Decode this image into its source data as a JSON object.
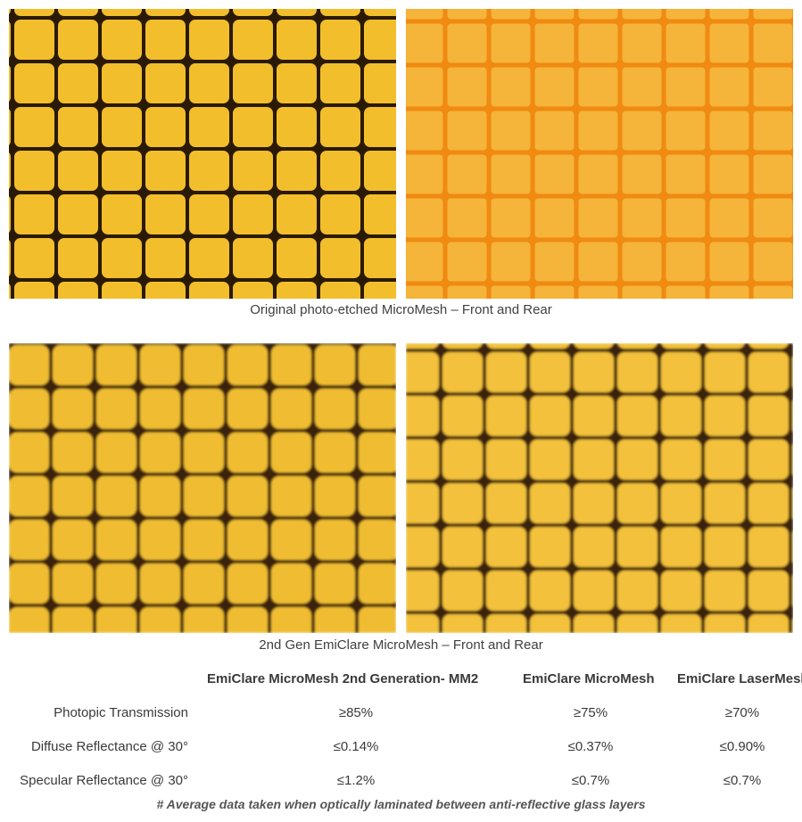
{
  "captions": {
    "top": "Original photo-etched MicroMesh – Front and Rear",
    "bottom": "2nd Gen EmiClare MicroMesh – Front and Rear"
  },
  "table": {
    "headers": [
      "EmiClare MicroMesh 2nd Generation- MM2",
      "EmiClare MicroMesh",
      "EmiClare LaserMesh"
    ],
    "rows": [
      {
        "label": "Photopic Transmission",
        "values": [
          "≥85%",
          "≥75%",
          "≥70%"
        ]
      },
      {
        "label": "Diffuse Reflectance @ 30°",
        "values": [
          "≤0.14%",
          "≤0.37%",
          "≤0.90%"
        ]
      },
      {
        "label": "Specular Reflectance @ 30°",
        "values": [
          "≤1.2%",
          "≤0.7%",
          "≤0.7%"
        ]
      }
    ]
  },
  "footnote": "# Average data taken when optically laminated between anti-reflective glass layers",
  "colors": {
    "mesh_yellow": "#f2be2c",
    "mesh_orange": "#f5b43a",
    "mesh_line_dark": "#2a1a05",
    "mesh_line_orange": "#f08a10"
  }
}
